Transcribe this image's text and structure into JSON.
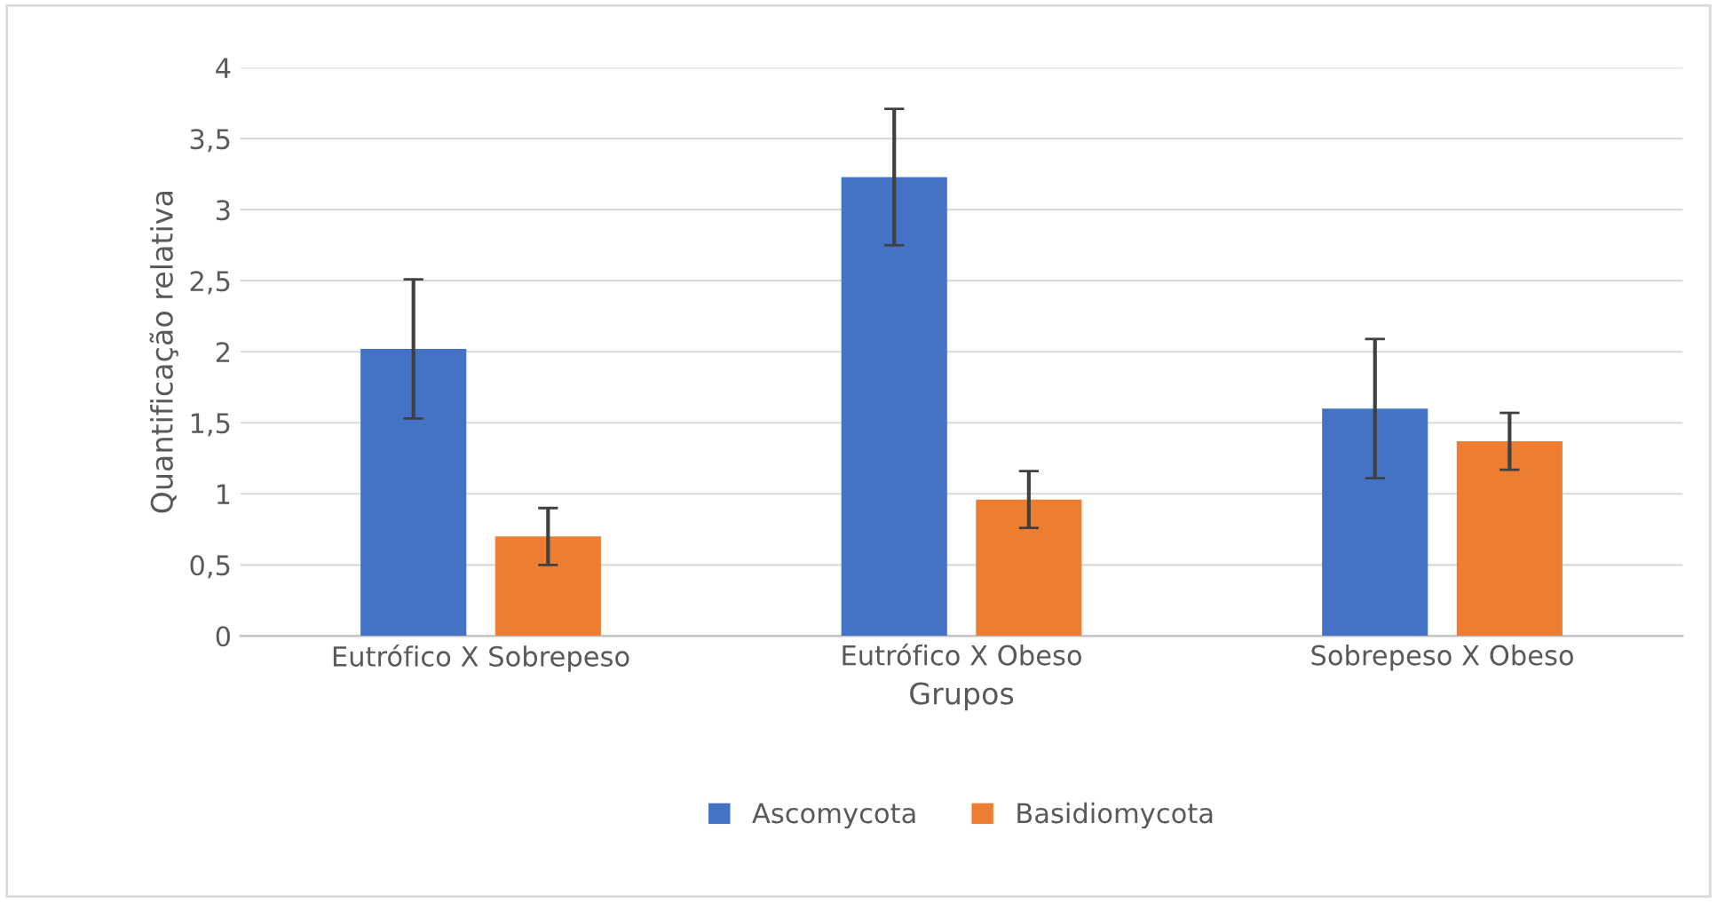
{
  "chart_data": {
    "type": "bar",
    "xlabel": "Grupos",
    "ylabel": "Quantificação relativa",
    "categories": [
      "Eutrófico X Sobrepeso",
      "Eutrófico X Obeso",
      "Sobrepeso X Obeso"
    ],
    "series": [
      {
        "name": "Ascomycota",
        "color": "#4472c4",
        "values": [
          2.02,
          3.23,
          1.6
        ],
        "errors": [
          0.49,
          0.48,
          0.49
        ]
      },
      {
        "name": "Basidiomycota",
        "color": "#ed7d31",
        "values": [
          0.7,
          0.96,
          1.37
        ],
        "errors": [
          0.2,
          0.2,
          0.2
        ]
      }
    ],
    "ylim": [
      0,
      4
    ],
    "yticks": [
      0,
      {
        "value": 0.5,
        "label": "0,5"
      },
      1,
      {
        "value": 1.5,
        "label": "1,5"
      },
      2,
      {
        "value": 2.5,
        "label": "2,5"
      },
      3,
      {
        "value": 3.5,
        "label": "3,5"
      },
      4
    ],
    "grid": "y",
    "legend": "bottom"
  }
}
